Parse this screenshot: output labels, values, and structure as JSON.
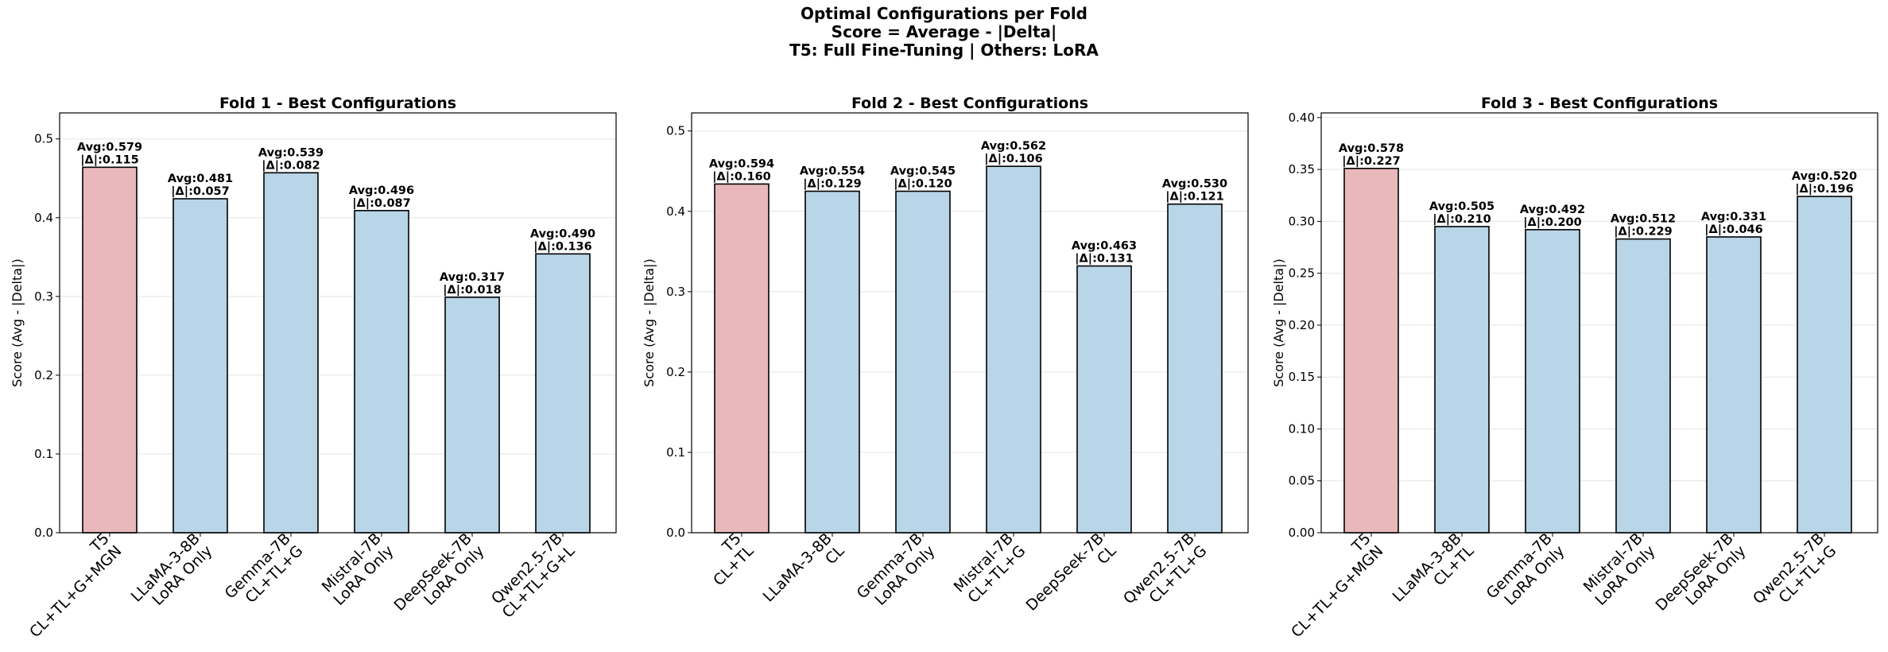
{
  "figure": {
    "title_lines": [
      "Optimal Configurations per Fold",
      "Score = Average - |Delta|",
      "T5: Full Fine-Tuning | Others: LoRA"
    ]
  },
  "colors": {
    "t5_bar": "#e8b8ba",
    "lora_bar": "#b9d5e8",
    "bar_edge": "#000000",
    "grid": "#e4e4e4"
  },
  "chart_data": [
    {
      "type": "bar",
      "title": "Fold 1 - Best Configurations",
      "ylabel": "Score (Avg - |Delta|)",
      "ylim": [
        0,
        0.533
      ],
      "yticks": [
        "0.0",
        "0.1",
        "0.2",
        "0.3",
        "0.4",
        "0.5"
      ],
      "categories": [
        [
          "T5",
          "CL+TL+G+MGN"
        ],
        [
          "LLaMA-3-8B",
          "LoRA Only"
        ],
        [
          "Gemma-7B",
          "CL+TL+G"
        ],
        [
          "Mistral-7B",
          "LoRA Only"
        ],
        [
          "DeepSeek-7B",
          "LoRA Only"
        ],
        [
          "Qwen2.5-7B",
          "CL+TL+G+L"
        ]
      ],
      "values": [
        0.464,
        0.424,
        0.457,
        0.409,
        0.299,
        0.354
      ],
      "labels": [
        [
          "Avg:0.579",
          "|Δ|:0.115"
        ],
        [
          "Avg:0.481",
          "|Δ|:0.057"
        ],
        [
          "Avg:0.539",
          "|Δ|:0.082"
        ],
        [
          "Avg:0.496",
          "|Δ|:0.087"
        ],
        [
          "Avg:0.317",
          "|Δ|:0.018"
        ],
        [
          "Avg:0.490",
          "|Δ|:0.136"
        ]
      ],
      "grid": true
    },
    {
      "type": "bar",
      "title": "Fold 2 - Best Configurations",
      "ylabel": "Score (Avg - |Delta|)",
      "ylim": [
        0,
        0.5225
      ],
      "yticks": [
        "0.0",
        "0.1",
        "0.2",
        "0.3",
        "0.4",
        "0.5"
      ],
      "categories": [
        [
          "T5",
          "CL+TL"
        ],
        [
          "LLaMA-3-8B",
          "CL"
        ],
        [
          "Gemma-7B",
          "LoRA Only"
        ],
        [
          "Mistral-7B",
          "CL+TL+G"
        ],
        [
          "DeepSeek-7B",
          "CL"
        ],
        [
          "Qwen2.5-7B",
          "CL+TL+G"
        ]
      ],
      "values": [
        0.434,
        0.425,
        0.425,
        0.456,
        0.332,
        0.409
      ],
      "labels": [
        [
          "Avg:0.594",
          "|Δ|:0.160"
        ],
        [
          "Avg:0.554",
          "|Δ|:0.129"
        ],
        [
          "Avg:0.545",
          "|Δ|:0.120"
        ],
        [
          "Avg:0.562",
          "|Δ|:0.106"
        ],
        [
          "Avg:0.463",
          "|Δ|:0.131"
        ],
        [
          "Avg:0.530",
          "|Δ|:0.121"
        ]
      ],
      "grid": true
    },
    {
      "type": "bar",
      "title": "Fold 3 - Best Configurations",
      "ylabel": "Score (Avg - |Delta|)",
      "ylim": [
        0,
        0.4045
      ],
      "yticks": [
        "0.00",
        "0.05",
        "0.10",
        "0.15",
        "0.20",
        "0.25",
        "0.30",
        "0.35",
        "0.40"
      ],
      "categories": [
        [
          "T5",
          "CL+TL+G+MGN"
        ],
        [
          "LLaMA-3-8B",
          "CL+TL"
        ],
        [
          "Gemma-7B",
          "LoRA Only"
        ],
        [
          "Mistral-7B",
          "LoRA Only"
        ],
        [
          "DeepSeek-7B",
          "LoRA Only"
        ],
        [
          "Qwen2.5-7B",
          "CL+TL+G"
        ]
      ],
      "values": [
        0.351,
        0.295,
        0.292,
        0.283,
        0.285,
        0.324
      ],
      "labels": [
        [
          "Avg:0.578",
          "|Δ|:0.227"
        ],
        [
          "Avg:0.505",
          "|Δ|:0.210"
        ],
        [
          "Avg:0.492",
          "|Δ|:0.200"
        ],
        [
          "Avg:0.512",
          "|Δ|:0.229"
        ],
        [
          "Avg:0.331",
          "|Δ|:0.046"
        ],
        [
          "Avg:0.520",
          "|Δ|:0.196"
        ]
      ],
      "grid": true
    }
  ]
}
